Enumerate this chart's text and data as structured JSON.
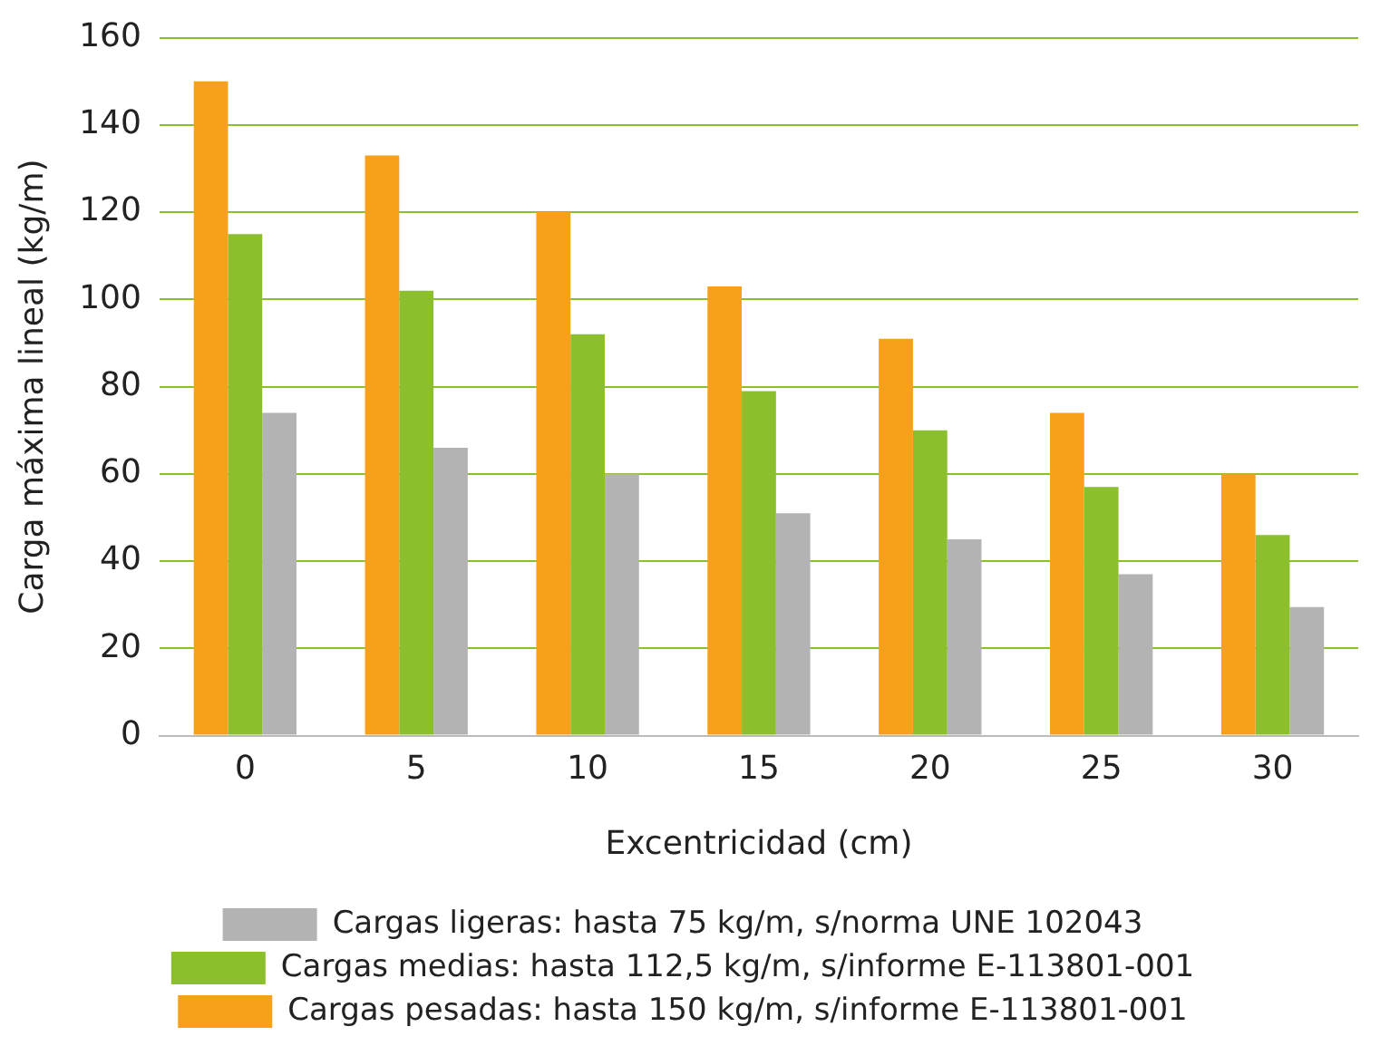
{
  "chart_data": {
    "type": "bar",
    "xlabel": "Excentricidad (cm)",
    "ylabel": "Carga máxima lineal (kg/m)",
    "categories": [
      "0",
      "5",
      "10",
      "15",
      "20",
      "25",
      "30"
    ],
    "series": [
      {
        "name": "Cargas pesadas: hasta 150 kg/m, s/informe E-113801-001",
        "color": "#f7a11a",
        "values": [
          150,
          133,
          120,
          103,
          91,
          74,
          60
        ]
      },
      {
        "name": "Cargas medias: hasta 112,5 kg/m, s/informe E-113801-001",
        "color": "#8cbf2e",
        "values": [
          115,
          102,
          92,
          79,
          70,
          57,
          46
        ]
      },
      {
        "name": "Cargas ligeras: hasta 75 kg/m, s/norma UNE 102043",
        "color": "#b3b3b3",
        "values": [
          74,
          66,
          60,
          51,
          45,
          37,
          29.5
        ]
      }
    ],
    "ylim": [
      0,
      160
    ],
    "yticks": [
      0,
      20,
      40,
      60,
      80,
      100,
      120,
      140,
      160
    ],
    "grid": "y",
    "legend": "bottom"
  }
}
